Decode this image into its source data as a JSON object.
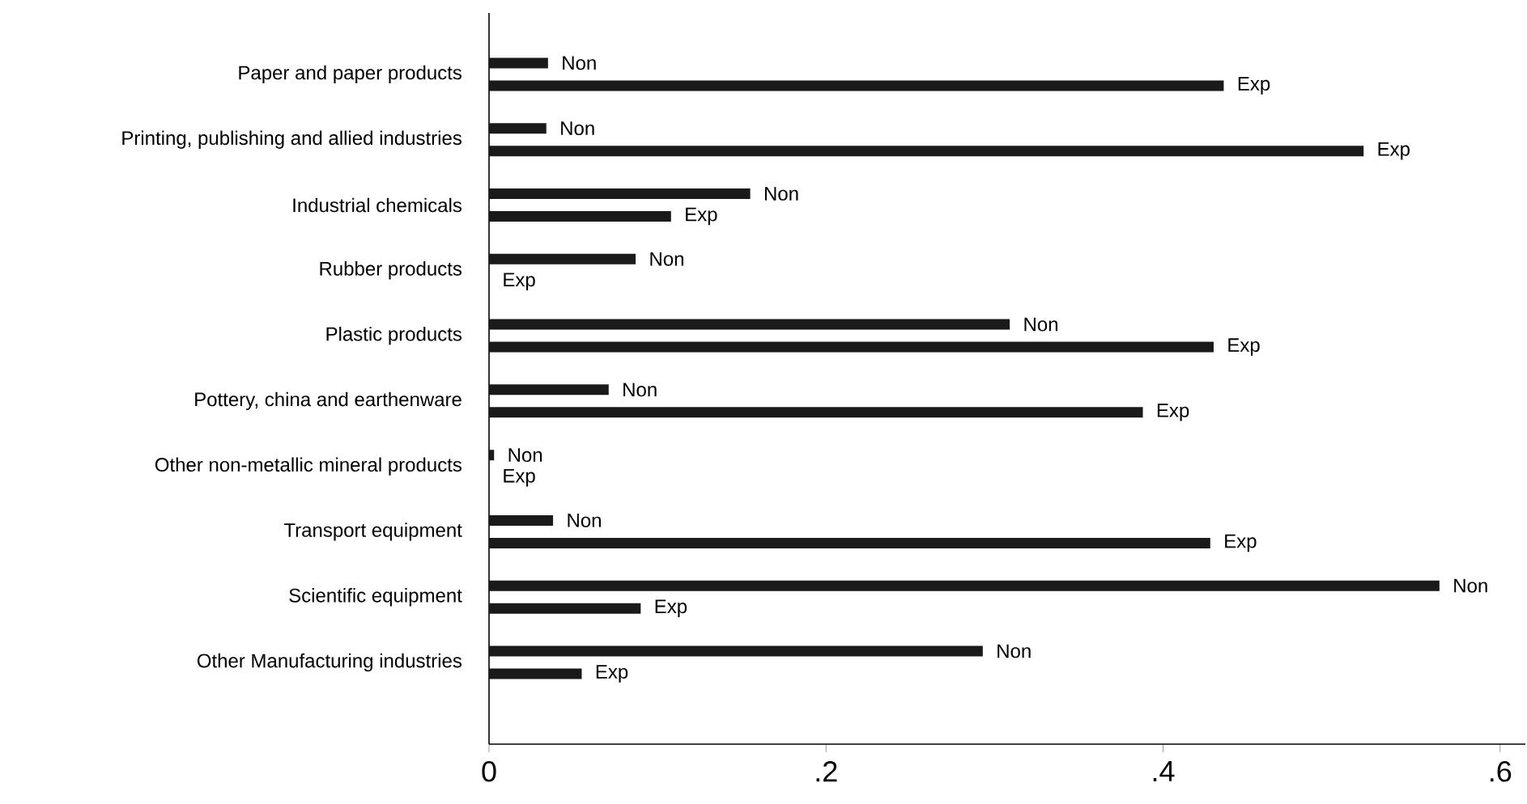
{
  "chart_data": {
    "type": "bar",
    "orientation": "horizontal",
    "categories": [
      "Paper and paper products",
      "Printing, publishing and allied industries",
      "Industrial chemicals",
      "Rubber products",
      "Plastic products",
      "Pottery, china and earthenware",
      "Other non-metallic mineral products",
      "Transport equipment",
      "Scientific equipment",
      "Other Manufacturing industries"
    ],
    "series": [
      {
        "name": "Non",
        "color": "#1a1a1a",
        "values": [
          0.035,
          0.034,
          0.155,
          0.087,
          0.309,
          0.071,
          0.003,
          0.038,
          0.564,
          0.293
        ]
      },
      {
        "name": "Exp",
        "color": "#1a1a1a",
        "values": [
          0.436,
          0.519,
          0.108,
          0,
          0.43,
          0.388,
          0,
          0.428,
          0.09,
          0.055
        ]
      }
    ],
    "xlim": [
      0,
      0.615
    ],
    "xticks": [
      0,
      {
        "value": 0.2,
        "label": ".2"
      },
      {
        "value": 0.4,
        "label": ".4"
      },
      {
        "value": 0.6,
        "label": ".6"
      }
    ],
    "grid": false
  }
}
